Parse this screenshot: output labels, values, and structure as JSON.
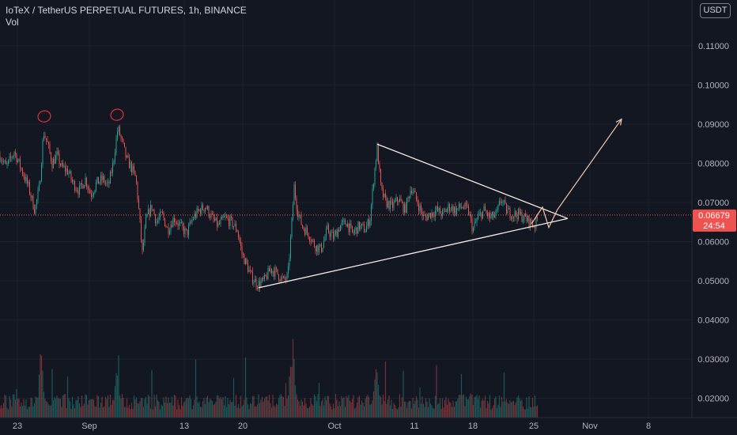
{
  "header": {
    "title": "IoTeX / TetherUS PERPETUAL FUTURES, 1h, BINANCE",
    "volume_label": "Vol"
  },
  "currency_button": "USDT",
  "price_label": {
    "price": "0.06679",
    "countdown": "24:54"
  },
  "colors": {
    "background": "#131722",
    "up": "#26a69a",
    "down": "#ef5350",
    "drawing": "#f5f0e6",
    "price_line": "#ef5350",
    "axis_text": "#b2b5be"
  },
  "chart_data": {
    "type": "candlestick",
    "title": "IoTeX / TetherUS PERPETUAL FUTURES, 1h, BINANCE",
    "y_axis": {
      "ticks": [
        "0.11000",
        "0.10000",
        "0.09000",
        "0.08000",
        "0.07000",
        "0.06000",
        "0.05000",
        "0.04000",
        "0.03000",
        "0.02000"
      ],
      "tick_values": [
        0.11,
        0.1,
        0.09,
        0.08,
        0.07,
        0.06,
        0.05,
        0.04,
        0.03,
        0.02
      ]
    },
    "x_axis": {
      "ticks": [
        "23",
        "Sep",
        "13",
        "20",
        "Oct",
        "11",
        "18",
        "25",
        "Nov",
        "8"
      ]
    },
    "current_price": 0.06679,
    "price_path": [
      [
        0,
        0.082
      ],
      [
        8,
        0.079
      ],
      [
        18,
        0.083
      ],
      [
        28,
        0.078
      ],
      [
        36,
        0.074
      ],
      [
        44,
        0.068
      ],
      [
        50,
        0.074
      ],
      [
        55,
        0.088
      ],
      [
        60,
        0.085
      ],
      [
        66,
        0.08
      ],
      [
        72,
        0.082
      ],
      [
        78,
        0.079
      ],
      [
        86,
        0.078
      ],
      [
        92,
        0.075
      ],
      [
        100,
        0.073
      ],
      [
        108,
        0.076
      ],
      [
        115,
        0.072
      ],
      [
        122,
        0.075
      ],
      [
        130,
        0.076
      ],
      [
        137,
        0.074
      ],
      [
        143,
        0.08
      ],
      [
        149,
        0.089
      ],
      [
        155,
        0.085
      ],
      [
        160,
        0.081
      ],
      [
        166,
        0.079
      ],
      [
        172,
        0.076
      ],
      [
        176,
        0.067
      ],
      [
        180,
        0.057
      ],
      [
        185,
        0.066
      ],
      [
        192,
        0.069
      ],
      [
        198,
        0.065
      ],
      [
        205,
        0.067
      ],
      [
        212,
        0.063
      ],
      [
        220,
        0.066
      ],
      [
        228,
        0.064
      ],
      [
        236,
        0.062
      ],
      [
        244,
        0.066
      ],
      [
        252,
        0.068
      ],
      [
        260,
        0.069
      ],
      [
        268,
        0.066
      ],
      [
        276,
        0.064
      ],
      [
        284,
        0.066
      ],
      [
        292,
        0.065
      ],
      [
        300,
        0.063
      ],
      [
        306,
        0.057
      ],
      [
        312,
        0.054
      ],
      [
        318,
        0.051
      ],
      [
        326,
        0.049
      ],
      [
        334,
        0.05
      ],
      [
        342,
        0.053
      ],
      [
        350,
        0.052
      ],
      [
        358,
        0.05
      ],
      [
        364,
        0.051
      ],
      [
        368,
        0.062
      ],
      [
        372,
        0.074
      ],
      [
        376,
        0.068
      ],
      [
        382,
        0.064
      ],
      [
        390,
        0.062
      ],
      [
        398,
        0.059
      ],
      [
        406,
        0.058
      ],
      [
        414,
        0.063
      ],
      [
        422,
        0.061
      ],
      [
        430,
        0.064
      ],
      [
        438,
        0.065
      ],
      [
        446,
        0.062
      ],
      [
        454,
        0.064
      ],
      [
        462,
        0.063
      ],
      [
        468,
        0.066
      ],
      [
        473,
        0.077
      ],
      [
        477,
        0.084
      ],
      [
        482,
        0.073
      ],
      [
        488,
        0.07
      ],
      [
        496,
        0.069
      ],
      [
        504,
        0.071
      ],
      [
        512,
        0.068
      ],
      [
        520,
        0.074
      ],
      [
        528,
        0.07
      ],
      [
        536,
        0.066
      ],
      [
        544,
        0.067
      ],
      [
        552,
        0.068
      ],
      [
        560,
        0.067
      ],
      [
        568,
        0.069
      ],
      [
        576,
        0.068
      ],
      [
        584,
        0.069
      ],
      [
        592,
        0.068
      ],
      [
        598,
        0.063
      ],
      [
        604,
        0.066
      ],
      [
        612,
        0.068
      ],
      [
        620,
        0.066
      ],
      [
        628,
        0.067
      ],
      [
        634,
        0.071
      ],
      [
        640,
        0.068
      ],
      [
        648,
        0.067
      ],
      [
        656,
        0.067
      ],
      [
        664,
        0.066
      ],
      [
        670,
        0.065
      ],
      [
        676,
        0.064
      ],
      [
        680,
        0.066
      ]
    ],
    "volume_spikes": [
      [
        52,
        0.035
      ],
      [
        148,
        0.029
      ],
      [
        370,
        0.042
      ],
      [
        476,
        0.03
      ],
      [
        596,
        0.022
      ]
    ],
    "volume_axis_tick_values": [
      0.04,
      0.03,
      0.02
    ]
  },
  "drawings": {
    "resistance_line": {
      "from": [
        477,
        0.0849
      ],
      "to": [
        718,
        0.0659
      ]
    },
    "support_line": {
      "from": [
        327,
        0.0482
      ],
      "to": [
        718,
        0.0659
      ]
    },
    "zigzag": [
      [
        672,
        0.0645
      ],
      [
        686,
        0.0688
      ],
      [
        694,
        0.0636
      ],
      [
        705,
        0.0682
      ]
    ],
    "projection_arrow": {
      "from": [
        705,
        0.0682
      ],
      "to": [
        786,
        0.0913
      ]
    },
    "top_circles": [
      [
        56,
        0.092
      ],
      [
        148,
        0.0924
      ]
    ]
  }
}
